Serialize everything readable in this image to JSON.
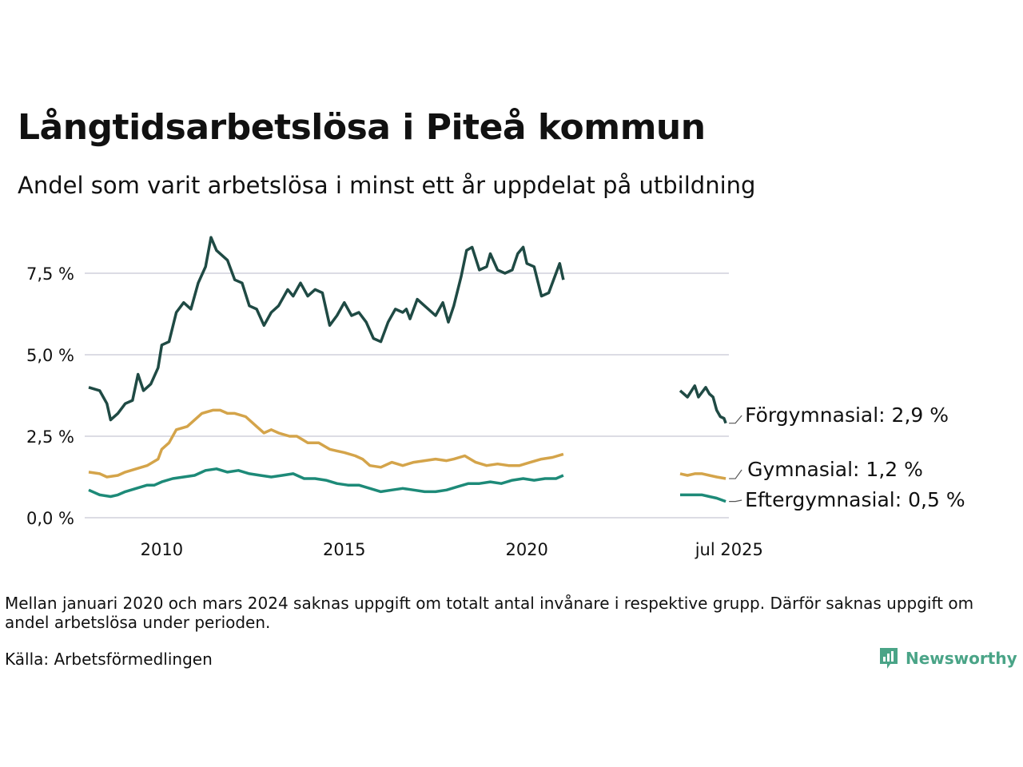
{
  "title": "Långtidsarbetslösa i Piteå kommun",
  "subtitle": "Andel som varit arbetslösa i minst ett år uppdelat på utbildning",
  "footnote": "Mellan januari 2020 och mars 2024 saknas uppgift om totalt antal invånare i respektive grupp. Därför saknas uppgift om andel arbetslösa under perioden.",
  "source": "Källa: Arbetsförmedlingen",
  "logo": {
    "text": "Newsworthy",
    "icon": "newsworthy-logo-icon",
    "color": "#4aa487"
  },
  "chart_data": {
    "type": "line",
    "unit": "%",
    "ylim": [
      0,
      8.8
    ],
    "y_ticks": [
      0,
      2.5,
      5.0,
      7.5
    ],
    "y_tick_labels": [
      "0,0 %",
      "2,5 %",
      "5,0 %",
      "7,5 %"
    ],
    "x_ticks": [
      2010,
      2015,
      2020,
      2025.54
    ],
    "x_tick_labels": [
      "2010",
      "2015",
      "2020",
      "jul 2025"
    ],
    "xlim": [
      2008.0,
      2025.6
    ],
    "grid": "horizontal",
    "legend": "direct labels at line ends",
    "series": [
      {
        "name": "Förgymnasial",
        "end_label": "Förgymnasial: 2,9 %",
        "color": "#1f4a44",
        "segments": [
          [
            [
              2008.0,
              4.0
            ],
            [
              2008.3,
              3.9
            ],
            [
              2008.5,
              3.5
            ],
            [
              2008.6,
              3.0
            ],
            [
              2008.8,
              3.2
            ],
            [
              2009.0,
              3.5
            ],
            [
              2009.2,
              3.6
            ],
            [
              2009.35,
              4.4
            ],
            [
              2009.5,
              3.9
            ],
            [
              2009.7,
              4.1
            ],
            [
              2009.9,
              4.6
            ],
            [
              2010.0,
              5.3
            ],
            [
              2010.2,
              5.4
            ],
            [
              2010.4,
              6.3
            ],
            [
              2010.6,
              6.6
            ],
            [
              2010.8,
              6.4
            ],
            [
              2011.0,
              7.2
            ],
            [
              2011.2,
              7.7
            ],
            [
              2011.35,
              8.6
            ],
            [
              2011.5,
              8.2
            ],
            [
              2011.8,
              7.9
            ],
            [
              2012.0,
              7.3
            ],
            [
              2012.2,
              7.2
            ],
            [
              2012.4,
              6.5
            ],
            [
              2012.6,
              6.4
            ],
            [
              2012.8,
              5.9
            ],
            [
              2013.0,
              6.3
            ],
            [
              2013.2,
              6.5
            ],
            [
              2013.45,
              7.0
            ],
            [
              2013.6,
              6.8
            ],
            [
              2013.8,
              7.2
            ],
            [
              2014.0,
              6.8
            ],
            [
              2014.2,
              7.0
            ],
            [
              2014.4,
              6.9
            ],
            [
              2014.6,
              5.9
            ],
            [
              2014.8,
              6.2
            ],
            [
              2015.0,
              6.6
            ],
            [
              2015.2,
              6.2
            ],
            [
              2015.4,
              6.3
            ],
            [
              2015.6,
              6.0
            ],
            [
              2015.8,
              5.5
            ],
            [
              2016.0,
              5.4
            ],
            [
              2016.2,
              6.0
            ],
            [
              2016.4,
              6.4
            ],
            [
              2016.6,
              6.3
            ],
            [
              2016.7,
              6.4
            ],
            [
              2016.8,
              6.1
            ],
            [
              2017.0,
              6.7
            ],
            [
              2017.2,
              6.5
            ],
            [
              2017.5,
              6.2
            ],
            [
              2017.7,
              6.6
            ],
            [
              2017.85,
              6.0
            ],
            [
              2018.0,
              6.5
            ],
            [
              2018.2,
              7.4
            ],
            [
              2018.35,
              8.2
            ],
            [
              2018.5,
              8.3
            ],
            [
              2018.7,
              7.6
            ],
            [
              2018.9,
              7.7
            ],
            [
              2019.0,
              8.1
            ],
            [
              2019.2,
              7.6
            ],
            [
              2019.4,
              7.5
            ],
            [
              2019.6,
              7.6
            ],
            [
              2019.75,
              8.1
            ],
            [
              2019.9,
              8.3
            ],
            [
              2020.0,
              7.8
            ],
            [
              2020.2,
              7.7
            ],
            [
              2020.4,
              6.8
            ],
            [
              2020.6,
              6.9
            ],
            [
              2020.8,
              7.5
            ],
            [
              2020.9,
              7.8
            ],
            [
              2021.0,
              7.3
            ]
          ],
          [
            [
              2024.2,
              3.9
            ],
            [
              2024.4,
              3.7
            ],
            [
              2024.6,
              4.05
            ],
            [
              2024.7,
              3.7
            ],
            [
              2024.9,
              4.0
            ],
            [
              2025.0,
              3.8
            ],
            [
              2025.1,
              3.7
            ],
            [
              2025.2,
              3.3
            ],
            [
              2025.3,
              3.1
            ],
            [
              2025.4,
              3.05
            ],
            [
              2025.45,
              2.9
            ]
          ]
        ]
      },
      {
        "name": "Gymnasial",
        "end_label": "Gymnasial: 1,2 %",
        "color": "#d4a44a",
        "segments": [
          [
            [
              2008.0,
              1.4
            ],
            [
              2008.3,
              1.35
            ],
            [
              2008.5,
              1.25
            ],
            [
              2008.8,
              1.3
            ],
            [
              2009.0,
              1.4
            ],
            [
              2009.3,
              1.5
            ],
            [
              2009.6,
              1.6
            ],
            [
              2009.9,
              1.8
            ],
            [
              2010.0,
              2.1
            ],
            [
              2010.2,
              2.3
            ],
            [
              2010.4,
              2.7
            ],
            [
              2010.7,
              2.8
            ],
            [
              2010.9,
              3.0
            ],
            [
              2011.1,
              3.2
            ],
            [
              2011.4,
              3.3
            ],
            [
              2011.6,
              3.3
            ],
            [
              2011.8,
              3.2
            ],
            [
              2012.0,
              3.2
            ],
            [
              2012.3,
              3.1
            ],
            [
              2012.6,
              2.8
            ],
            [
              2012.8,
              2.6
            ],
            [
              2013.0,
              2.7
            ],
            [
              2013.2,
              2.6
            ],
            [
              2013.5,
              2.5
            ],
            [
              2013.7,
              2.5
            ],
            [
              2014.0,
              2.3
            ],
            [
              2014.3,
              2.3
            ],
            [
              2014.6,
              2.1
            ],
            [
              2014.8,
              2.05
            ],
            [
              2015.0,
              2.0
            ],
            [
              2015.3,
              1.9
            ],
            [
              2015.5,
              1.8
            ],
            [
              2015.7,
              1.6
            ],
            [
              2016.0,
              1.55
            ],
            [
              2016.3,
              1.7
            ],
            [
              2016.6,
              1.6
            ],
            [
              2016.9,
              1.7
            ],
            [
              2017.2,
              1.75
            ],
            [
              2017.5,
              1.8
            ],
            [
              2017.8,
              1.75
            ],
            [
              2018.0,
              1.8
            ],
            [
              2018.3,
              1.9
            ],
            [
              2018.6,
              1.7
            ],
            [
              2018.9,
              1.6
            ],
            [
              2019.2,
              1.65
            ],
            [
              2019.5,
              1.6
            ],
            [
              2019.8,
              1.6
            ],
            [
              2020.1,
              1.7
            ],
            [
              2020.4,
              1.8
            ],
            [
              2020.7,
              1.85
            ],
            [
              2021.0,
              1.95
            ]
          ],
          [
            [
              2024.2,
              1.35
            ],
            [
              2024.4,
              1.3
            ],
            [
              2024.6,
              1.35
            ],
            [
              2024.8,
              1.35
            ],
            [
              2025.0,
              1.3
            ],
            [
              2025.2,
              1.25
            ],
            [
              2025.45,
              1.2
            ]
          ]
        ]
      },
      {
        "name": "Eftergymnasial",
        "end_label": "Eftergymnasial: 0,5 %",
        "color": "#1d8a78",
        "segments": [
          [
            [
              2008.0,
              0.85
            ],
            [
              2008.3,
              0.7
            ],
            [
              2008.6,
              0.65
            ],
            [
              2008.8,
              0.7
            ],
            [
              2009.0,
              0.8
            ],
            [
              2009.3,
              0.9
            ],
            [
              2009.6,
              1.0
            ],
            [
              2009.8,
              1.0
            ],
            [
              2010.0,
              1.1
            ],
            [
              2010.3,
              1.2
            ],
            [
              2010.6,
              1.25
            ],
            [
              2010.9,
              1.3
            ],
            [
              2011.2,
              1.45
            ],
            [
              2011.5,
              1.5
            ],
            [
              2011.8,
              1.4
            ],
            [
              2012.1,
              1.45
            ],
            [
              2012.4,
              1.35
            ],
            [
              2012.7,
              1.3
            ],
            [
              2013.0,
              1.25
            ],
            [
              2013.3,
              1.3
            ],
            [
              2013.6,
              1.35
            ],
            [
              2013.9,
              1.2
            ],
            [
              2014.2,
              1.2
            ],
            [
              2014.5,
              1.15
            ],
            [
              2014.8,
              1.05
            ],
            [
              2015.1,
              1.0
            ],
            [
              2015.4,
              1.0
            ],
            [
              2015.7,
              0.9
            ],
            [
              2016.0,
              0.8
            ],
            [
              2016.3,
              0.85
            ],
            [
              2016.6,
              0.9
            ],
            [
              2016.9,
              0.85
            ],
            [
              2017.2,
              0.8
            ],
            [
              2017.5,
              0.8
            ],
            [
              2017.8,
              0.85
            ],
            [
              2018.1,
              0.95
            ],
            [
              2018.4,
              1.05
            ],
            [
              2018.7,
              1.05
            ],
            [
              2019.0,
              1.1
            ],
            [
              2019.3,
              1.05
            ],
            [
              2019.6,
              1.15
            ],
            [
              2019.9,
              1.2
            ],
            [
              2020.2,
              1.15
            ],
            [
              2020.5,
              1.2
            ],
            [
              2020.8,
              1.2
            ],
            [
              2021.0,
              1.3
            ]
          ],
          [
            [
              2024.2,
              0.7
            ],
            [
              2024.5,
              0.7
            ],
            [
              2024.8,
              0.7
            ],
            [
              2025.0,
              0.65
            ],
            [
              2025.2,
              0.6
            ],
            [
              2025.45,
              0.5
            ]
          ]
        ]
      }
    ]
  }
}
